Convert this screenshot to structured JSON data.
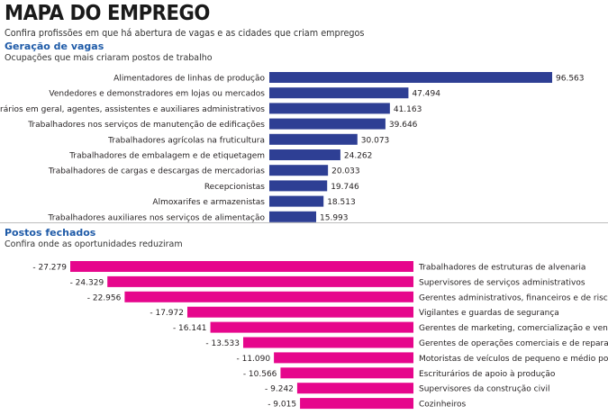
{
  "header": {
    "title": "MAPA DO EMPREGO",
    "subtitle": "Confira profissões em que há abertura de vagas e as cidades que criam empregos"
  },
  "sections": {
    "top": {
      "title": "Geração de vagas",
      "subtitle": "Ocupações que mais criaram postos de trabalho"
    },
    "bottom": {
      "title": "Postos fechados",
      "subtitle": "Confira onde as oportunidades reduziram"
    }
  },
  "colors": {
    "positive": "#2e3f94",
    "negative": "#e6068c"
  },
  "chart_data": [
    {
      "type": "bar",
      "orientation": "horizontal",
      "title": "Geração de vagas",
      "categories": [
        "Alimentadores de linhas de produção",
        "Vendedores e demonstradores em lojas ou mercados",
        "Escriturários em geral, agentes, assistentes e auxiliares administrativos",
        "Trabalhadores nos serviços de manutenção de edificações",
        "Trabalhadores agrícolas na fruticultura",
        "Trabalhadores de embalagem e de etiquetagem",
        "Trabalhadores de cargas e descargas de mercadorias",
        "Recepcionistas",
        "Almoxarifes e armazenistas",
        "Trabalhadores auxiliares nos serviços de alimentação"
      ],
      "values": [
        96563,
        47494,
        41163,
        39646,
        30073,
        24262,
        20033,
        19746,
        18513,
        15993
      ],
      "labels": [
        "96.563",
        "47.494",
        "41.163",
        "39.646",
        "30.073",
        "24.262",
        "20.033",
        "19.746",
        "18.513",
        "15.993"
      ],
      "color": "#2e3f94"
    },
    {
      "type": "bar",
      "orientation": "horizontal",
      "title": "Postos fechados",
      "categories": [
        "Trabalhadores de estruturas de alvenaria",
        "Supervisores de serviços administrativos",
        "Gerentes administrativos, financeiros e de riscos",
        "Vigilantes e guardas de segurança",
        "Gerentes de marketing, comercialização e vendas",
        "Gerentes de operações comerciais e de reparação",
        "Motoristas de veículos de pequeno e médio porte",
        "Escriturários de apoio à produção",
        "Supervisores da construção civil",
        "Cozinheiros"
      ],
      "values": [
        -27279,
        -24329,
        -22956,
        -17972,
        -16141,
        -13533,
        -11090,
        -10566,
        -9242,
        -9015
      ],
      "labels": [
        "- 27.279",
        "- 24.329",
        "- 22.956",
        "- 17.972",
        "- 16.141",
        "- 13.533",
        "- 11.090",
        "- 10.566",
        "- 9.242",
        "- 9.015"
      ],
      "color": "#e6068c"
    }
  ]
}
